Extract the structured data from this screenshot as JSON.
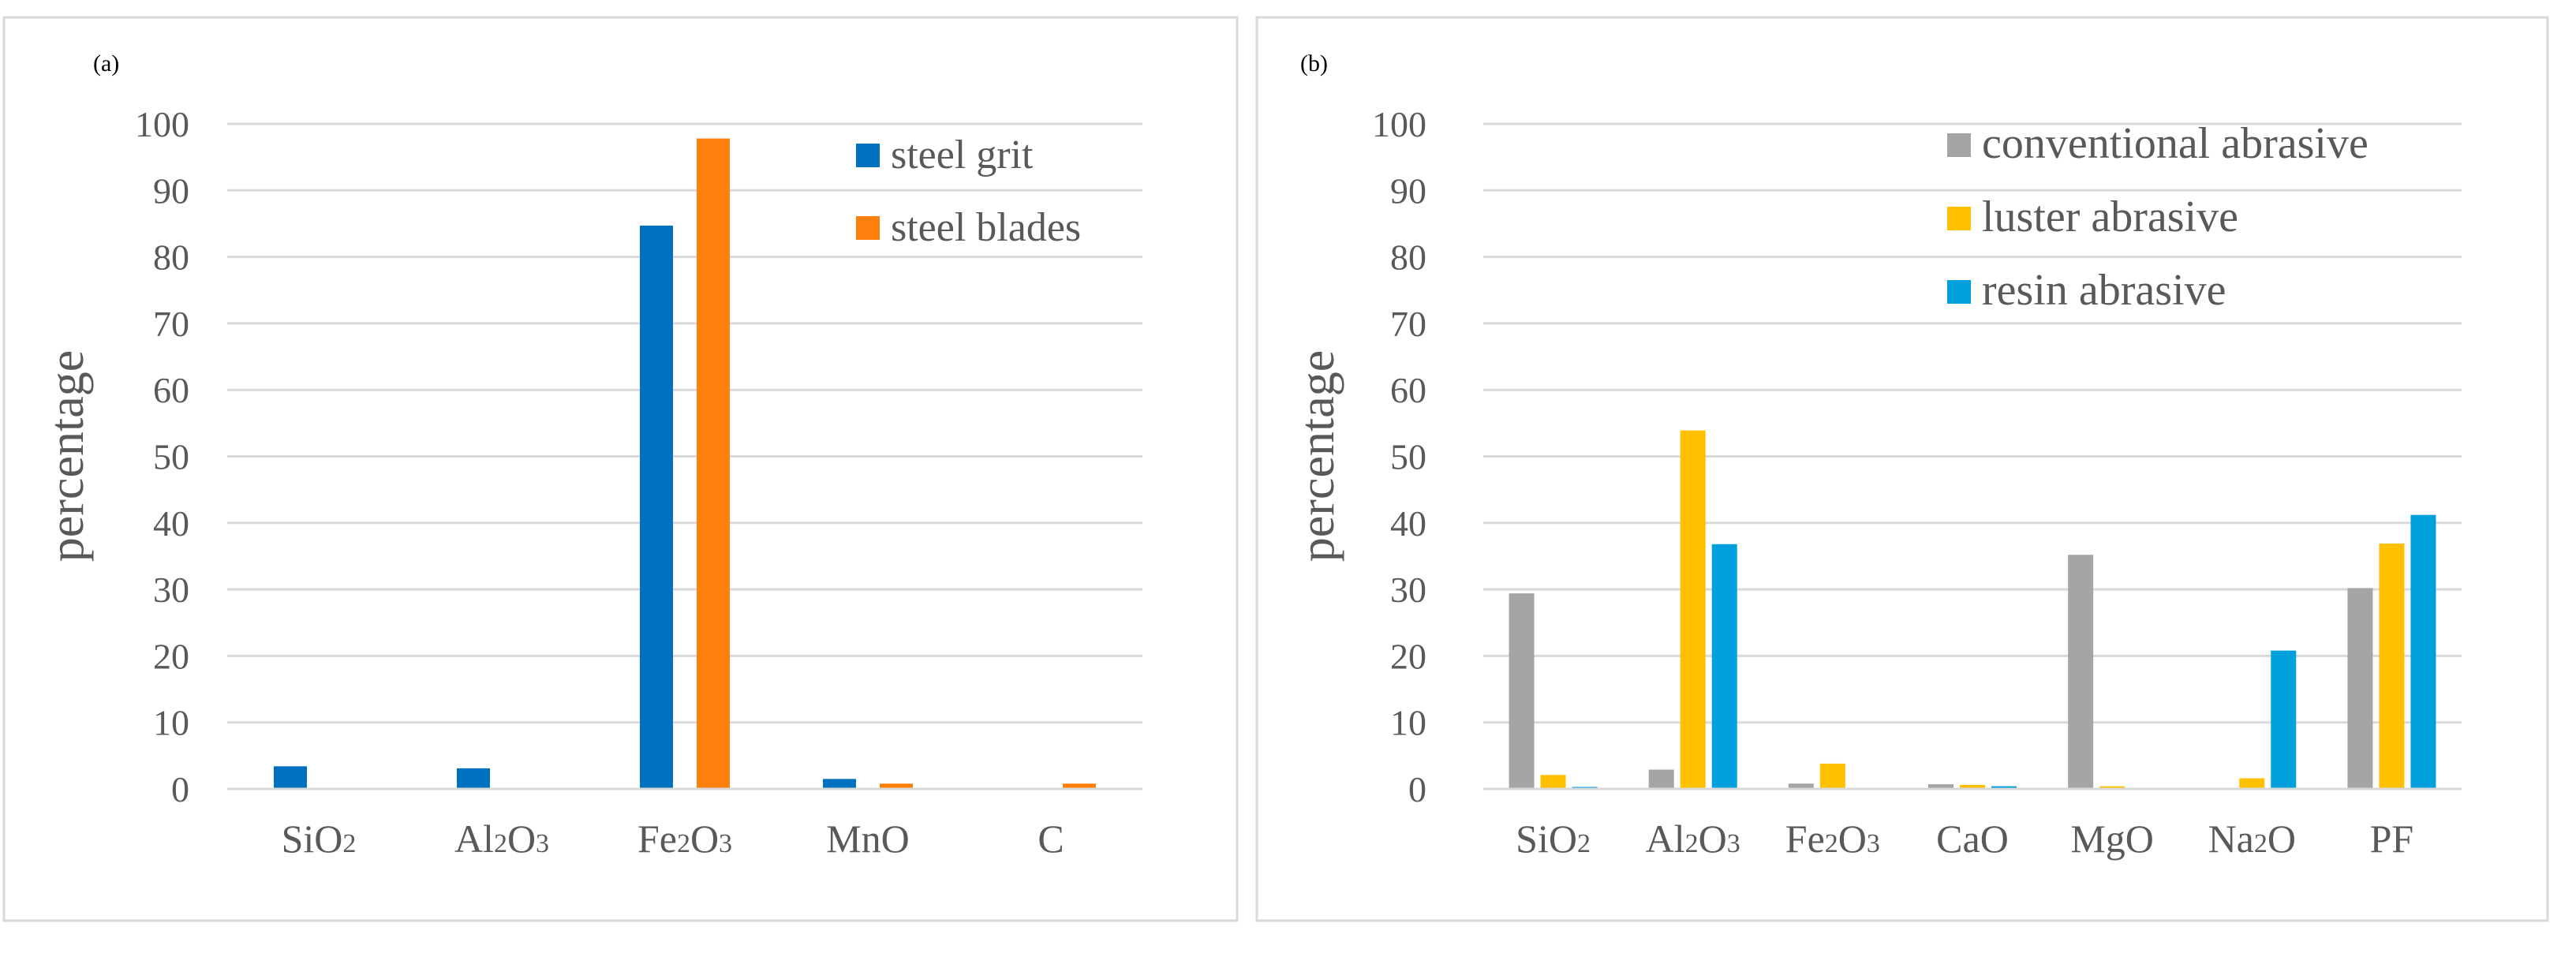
{
  "colors": {
    "background": "#ffffff",
    "frame": "#d9d9d9",
    "gridline": "#d9d9d9",
    "text": "#595959",
    "series": [
      "#0070c0",
      "#ff7f0e",
      "#a5a5a5",
      "#ffc000",
      "#00a0dd"
    ]
  },
  "chart_data": [
    {
      "panel_label": "(a)",
      "type": "bar",
      "ylabel": "percentage",
      "xlabel": "",
      "ylim": [
        0,
        100
      ],
      "yticks": [
        0,
        10,
        20,
        30,
        40,
        50,
        60,
        70,
        80,
        90,
        100
      ],
      "grid": true,
      "legend_position": "top-right",
      "categories": [
        {
          "base": "SiO",
          "sub": "2",
          "tail": ""
        },
        {
          "base": "Al",
          "sub": "2",
          "tail": "O",
          "sub2": "3"
        },
        {
          "base": "Fe",
          "sub": "2",
          "tail": "O",
          "sub2": "3"
        },
        {
          "base": "MnO",
          "sub": "",
          "tail": ""
        },
        {
          "base": "C",
          "sub": "",
          "tail": ""
        }
      ],
      "series": [
        {
          "name": "steel grit",
          "color": "#0070c0",
          "values": [
            3.4,
            3.1,
            84.7,
            1.5,
            0
          ]
        },
        {
          "name": "steel blades",
          "color": "#ff7f0e",
          "values": [
            0,
            0,
            97.8,
            0.8,
            0.8
          ]
        }
      ]
    },
    {
      "panel_label": "(b)",
      "type": "bar",
      "ylabel": "percentage",
      "xlabel": "",
      "ylim": [
        0,
        100
      ],
      "yticks": [
        0,
        10,
        20,
        30,
        40,
        50,
        60,
        70,
        80,
        90,
        100
      ],
      "grid": true,
      "legend_position": "top-right",
      "categories": [
        {
          "base": "SiO",
          "sub": "2",
          "tail": ""
        },
        {
          "base": "Al",
          "sub": "2",
          "tail": "O",
          "sub2": "3"
        },
        {
          "base": "Fe",
          "sub": "2",
          "tail": "O",
          "sub2": "3"
        },
        {
          "base": "CaO",
          "sub": "",
          "tail": ""
        },
        {
          "base": "MgO",
          "sub": "",
          "tail": ""
        },
        {
          "base": "Na",
          "sub": "2",
          "tail": "O"
        },
        {
          "base": "PF",
          "sub": "",
          "tail": ""
        }
      ],
      "series": [
        {
          "name": "conventional abrasive",
          "color": "#a5a5a5",
          "values": [
            29.4,
            2.9,
            0.8,
            0.7,
            35.2,
            0,
            30.2
          ]
        },
        {
          "name": "luster abrasive",
          "color": "#ffc000",
          "values": [
            2.1,
            53.9,
            3.8,
            0.6,
            0.4,
            1.6,
            36.9
          ]
        },
        {
          "name": "resin abrasive",
          "color": "#00a0dd",
          "values": [
            0.3,
            36.8,
            0,
            0.4,
            0,
            20.8,
            41.2
          ]
        }
      ]
    }
  ]
}
